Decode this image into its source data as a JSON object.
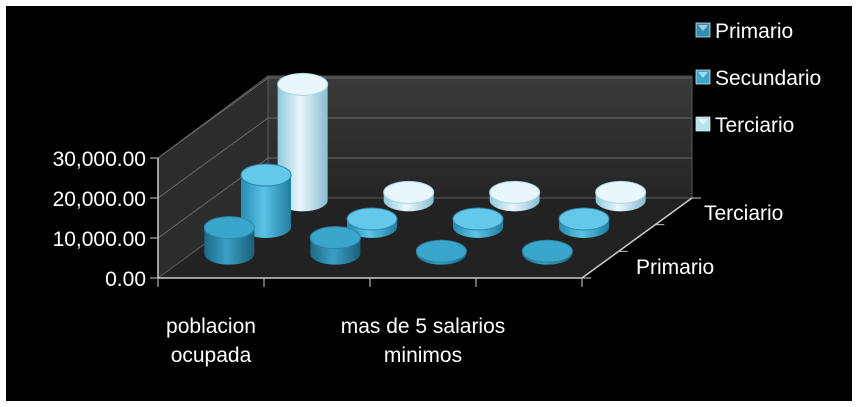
{
  "chart_data": {
    "type": "bar",
    "style": "3d-cylinder",
    "categories": [
      "poblacion ocupada",
      "",
      "mas de 5 salarios minimos",
      ""
    ],
    "category_label_lines": [
      [
        "poblacion",
        "ocupada"
      ],
      [],
      [
        "mas de 5 salarios",
        "minimos"
      ],
      []
    ],
    "depth_labels": [
      "Primario",
      "Terciario"
    ],
    "series": [
      {
        "name": "Primario",
        "values": [
          6500,
          4000,
          600,
          600
        ],
        "color": "#2e8fb0"
      },
      {
        "name": "Secundario",
        "values": [
          13000,
          2000,
          2000,
          2000
        ],
        "color": "#3aa6cc"
      },
      {
        "name": "Terciario",
        "values": [
          29000,
          2000,
          2000,
          2000
        ],
        "color": "#b6e2f0"
      }
    ],
    "yticks": [
      "0.00",
      "10,000.00",
      "20,000.00",
      "30,000.00"
    ],
    "ylim": [
      0,
      30000
    ],
    "legend": {
      "position": "top-right",
      "entries": [
        "Primario",
        "Secundario",
        "Terciario"
      ]
    },
    "background": "#000000",
    "gridlines": true
  }
}
